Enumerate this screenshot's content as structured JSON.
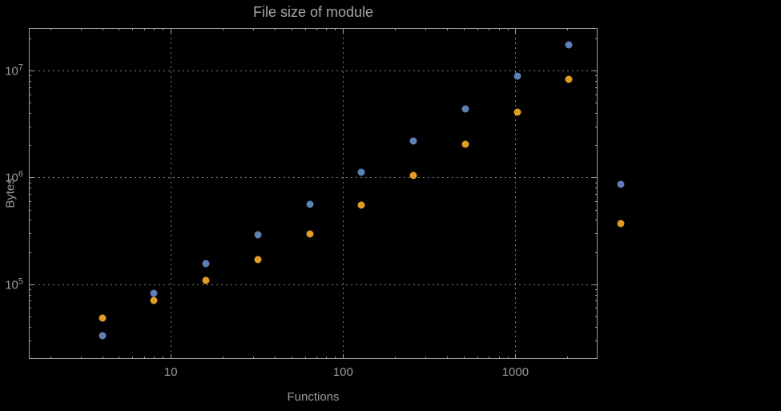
{
  "title": "File size of module",
  "chart_data": {
    "type": "scatter",
    "title": "File size of module",
    "xlabel": "Functions",
    "ylabel": "Bytes",
    "xscale": "log",
    "yscale": "log",
    "xlim": [
      1.5,
      3000
    ],
    "ylim": [
      20000,
      25000000
    ],
    "grid": "dotted",
    "legend": "none",
    "frame_color": "#9e9e9e",
    "grid_color": "#7d7d7d",
    "background": "#000000",
    "x_ticks": [
      {
        "value": 10,
        "label": "10"
      },
      {
        "value": 100,
        "label": "100"
      },
      {
        "value": 1000,
        "label": "1000"
      }
    ],
    "y_ticks": [
      {
        "value": 100000,
        "label_base": "10",
        "label_exp": "5"
      },
      {
        "value": 1000000,
        "label_base": "10",
        "label_exp": "6"
      },
      {
        "value": 10000000,
        "label_base": "10",
        "label_exp": "7"
      }
    ],
    "series": [
      {
        "name": "series-1-blue",
        "color": "#5E81B5",
        "points": [
          [
            4,
            33000
          ],
          [
            8,
            82000
          ],
          [
            16,
            155000
          ],
          [
            32,
            290000
          ],
          [
            64,
            560000
          ],
          [
            128,
            1120000
          ],
          [
            256,
            2200000
          ],
          [
            512,
            4400000
          ],
          [
            1024,
            8800000
          ],
          [
            2048,
            17500000
          ],
          [
            4096,
            860000
          ]
        ]
      },
      {
        "name": "series-2-orange",
        "color": "#E19C24",
        "points": [
          [
            4,
            48000
          ],
          [
            8,
            70000
          ],
          [
            16,
            108000
          ],
          [
            32,
            170000
          ],
          [
            64,
            295000
          ],
          [
            128,
            550000
          ],
          [
            256,
            1050000
          ],
          [
            512,
            2050000
          ],
          [
            1024,
            4100000
          ],
          [
            2048,
            8300000
          ],
          [
            4096,
            370000
          ]
        ]
      }
    ]
  }
}
